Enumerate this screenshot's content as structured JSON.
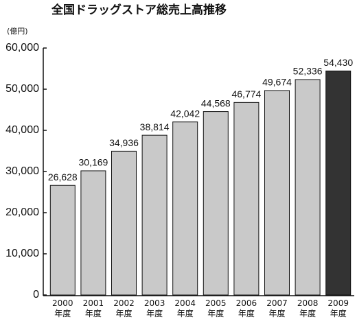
{
  "chart_data": {
    "type": "bar",
    "title": "全国ドラッグストア総売上高推移",
    "unit_label": "(億円)",
    "categories": [
      "2000\n年度",
      "2001\n年度",
      "2002\n年度",
      "2003\n年度",
      "2004\n年度",
      "2005\n年度",
      "2006\n年度",
      "2007\n年度",
      "2008\n年度",
      "2009\n年度"
    ],
    "values": [
      26628,
      30169,
      34936,
      38814,
      42042,
      44568,
      46774,
      49674,
      52336,
      54430
    ],
    "value_labels": [
      "26,628",
      "30,169",
      "34,936",
      "38,814",
      "42,042",
      "44,568",
      "46,774",
      "49,674",
      "52,336",
      "54,430"
    ],
    "colors": [
      "#c9c9c9",
      "#c9c9c9",
      "#c9c9c9",
      "#c9c9c9",
      "#c9c9c9",
      "#c9c9c9",
      "#c9c9c9",
      "#c9c9c9",
      "#c9c9c9",
      "#333333"
    ],
    "ylim": [
      0,
      60000
    ],
    "yticks": [
      0,
      {
        "value": 10000,
        "label": "10,000"
      },
      {
        "value": 20000,
        "label": "20,000"
      },
      {
        "value": 30000,
        "label": "30,000"
      },
      {
        "value": 40000,
        "label": "40,000"
      },
      {
        "value": 50000,
        "label": "50,000"
      },
      {
        "value": 60000,
        "label": "60,000"
      }
    ],
    "grid": false
  }
}
